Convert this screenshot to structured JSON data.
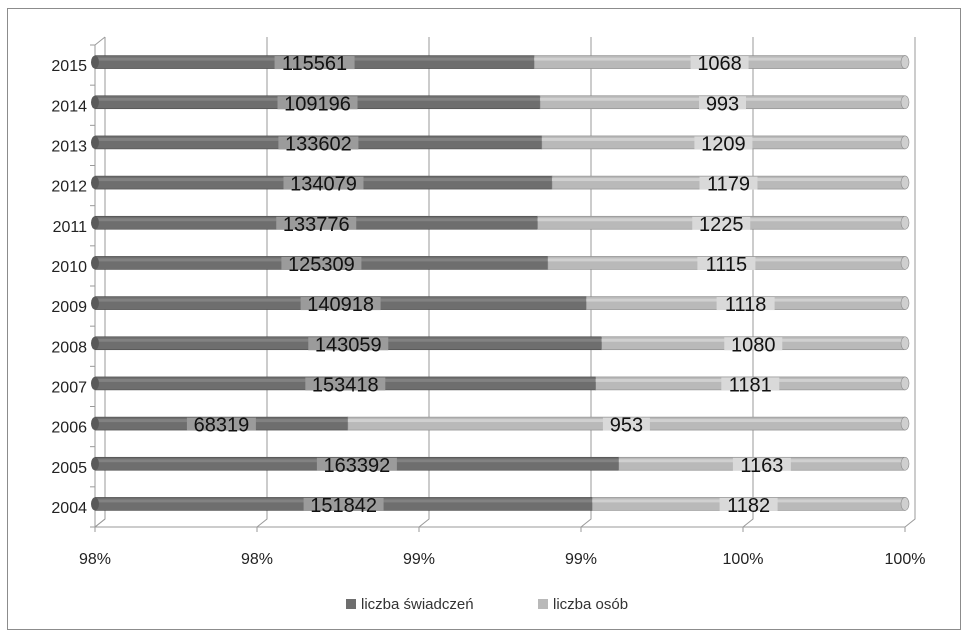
{
  "chart_data": {
    "type": "bar",
    "orientation": "horizontal",
    "stacking": "percent",
    "title": "",
    "xlabel": "",
    "ylabel": "",
    "categories": [
      "2004",
      "2005",
      "2006",
      "2007",
      "2008",
      "2009",
      "2010",
      "2011",
      "2012",
      "2013",
      "2014",
      "2015"
    ],
    "x_tick_labels": [
      "98%",
      "98%",
      "99%",
      "99%",
      "100%",
      "100%"
    ],
    "xlim_percent": [
      98.0,
      100.0
    ],
    "grid": true,
    "legend_position": "bottom",
    "series": [
      {
        "name": "liczba świadczeń",
        "color": "#6e6e6e",
        "values": [
          151842,
          163392,
          68319,
          153418,
          143059,
          140918,
          125309,
          133776,
          134079,
          133602,
          109196,
          115561
        ]
      },
      {
        "name": "liczba osób",
        "color": "#b9b9b9",
        "values": [
          1182,
          1163,
          953,
          1181,
          1080,
          1118,
          1115,
          1225,
          1179,
          1209,
          993,
          1068
        ]
      }
    ]
  }
}
